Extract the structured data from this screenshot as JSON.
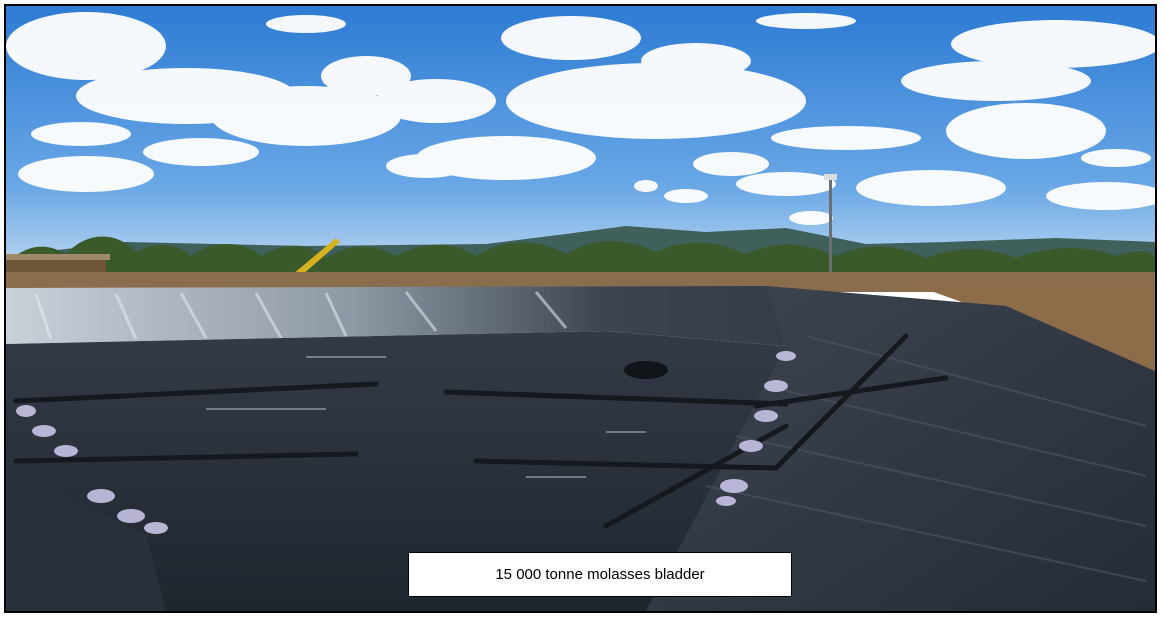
{
  "caption": {
    "text": "15 000 tonne molasses bladder"
  },
  "colors": {
    "sky_top": "#2f7fd6",
    "sky_bottom": "#a9cdf0",
    "cloud": "#ffffff",
    "hills": "#3f5f5a",
    "trees": "#3c5a2e",
    "ground": "#8a6a48",
    "liner": "#2a313b",
    "liner_back_wall": "#9aa4b0",
    "frame_border": "#000000"
  }
}
